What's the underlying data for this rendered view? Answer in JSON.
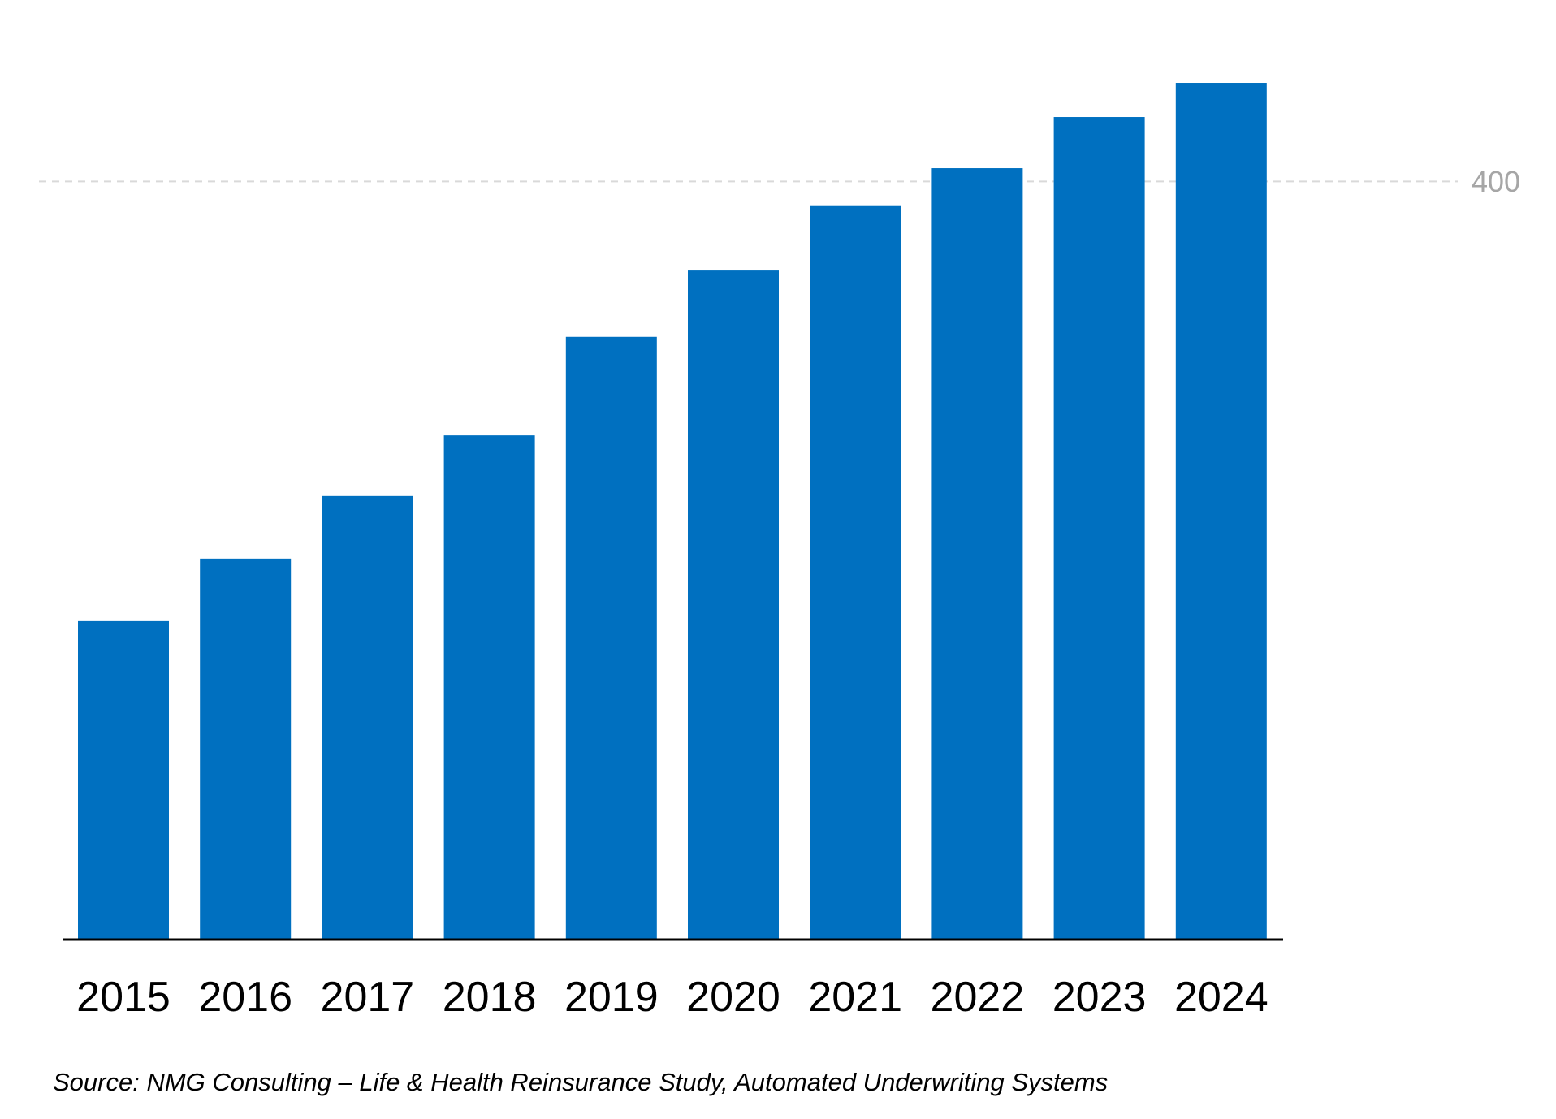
{
  "chart_data": {
    "type": "bar",
    "categories": [
      "2015",
      "2016",
      "2017",
      "2018",
      "2019",
      "2020",
      "2021",
      "2022",
      "2023",
      "2024"
    ],
    "values": [
      168,
      201,
      234,
      266,
      318,
      353,
      387,
      407,
      434,
      452
    ],
    "title": "",
    "xlabel": "",
    "ylabel": "",
    "ylim": [
      0,
      470
    ],
    "yticks": [
      400
    ],
    "grid": "dashed horizontal at tick",
    "legend": "none",
    "colors": {
      "bar": "#0070C0",
      "gridline": "#d9d9d9",
      "tick_label": "#a6a6a6",
      "axis": "#000000"
    }
  },
  "footer": {
    "source": "Source: NMG Consulting – Life & Health Reinsurance Study, Automated Underwriting Systems"
  }
}
